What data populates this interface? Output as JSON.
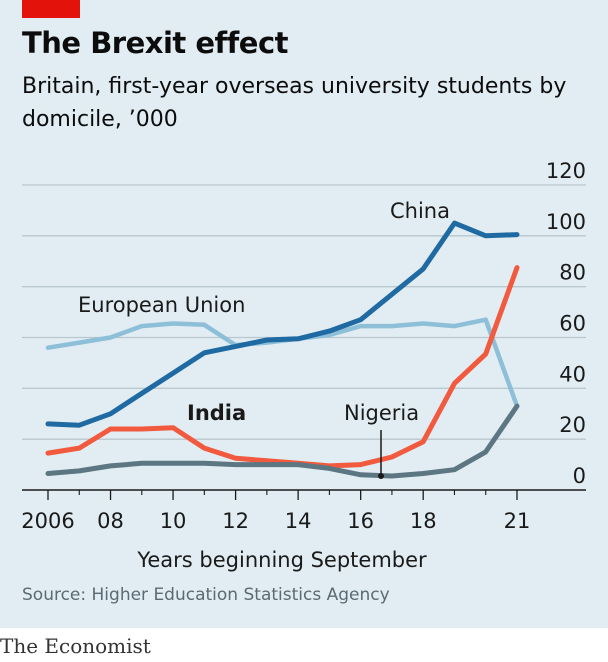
{
  "header": {
    "title": "The Brexit effect",
    "subtitle": "Britain, first-year overseas university students by domicile, ’000"
  },
  "footer": {
    "source": "Source: Higher Education Statistics Agency",
    "brand": "The Economist"
  },
  "colors": {
    "background": "#e1edf2",
    "brand_red": "#e3120b",
    "china": "#1f6aa2",
    "eu": "#8ebfd9",
    "india": "#f25a3f",
    "nigeria": "#5c7682",
    "grid": "#b9c7ce",
    "axis": "#1a1a1a"
  },
  "chart_data": {
    "type": "line",
    "xlabel": "Years beginning September",
    "ylabel": "",
    "xlim": [
      2005.6,
      2022
    ],
    "ylim": [
      0,
      120
    ],
    "y_ticks": [
      0,
      20,
      40,
      60,
      80,
      100,
      120
    ],
    "y_tick_labels": [
      "0",
      "20",
      "40",
      "60",
      "80",
      "100",
      "120"
    ],
    "x_ticks": [
      2006,
      2008,
      2010,
      2012,
      2014,
      2016,
      2018,
      2021
    ],
    "x_tick_labels": [
      "2006",
      "08",
      "10",
      "12",
      "14",
      "16",
      "18",
      "21"
    ],
    "x_minor_ticks": [
      2007,
      2009,
      2011,
      2013,
      2015,
      2017,
      2019,
      2020
    ],
    "y_axis_side": "right",
    "grid": true,
    "series": [
      {
        "name": "European Union",
        "color_key": "eu",
        "bold_label": false,
        "x": [
          2006,
          2007,
          2008,
          2009,
          2010,
          2011,
          2012,
          2013,
          2014,
          2015,
          2016,
          2017,
          2018,
          2019,
          2020,
          2021
        ],
        "y": [
          56,
          58,
          60,
          64.5,
          65.5,
          65,
          57,
          58,
          59.5,
          61,
          64.5,
          64.5,
          65.5,
          64.5,
          67,
          33
        ]
      },
      {
        "name": "China",
        "color_key": "china",
        "bold_label": false,
        "x": [
          2006,
          2007,
          2008,
          2009,
          2010,
          2011,
          2012,
          2013,
          2014,
          2015,
          2016,
          2017,
          2018,
          2019,
          2020,
          2021
        ],
        "y": [
          26,
          25.5,
          30,
          38,
          46,
          54,
          56.5,
          59,
          59.5,
          62.5,
          67,
          77,
          87,
          105,
          100,
          100.5
        ]
      },
      {
        "name": "India",
        "color_key": "india",
        "bold_label": true,
        "x": [
          2006,
          2007,
          2008,
          2009,
          2010,
          2011,
          2012,
          2013,
          2014,
          2015,
          2016,
          2017,
          2018,
          2019,
          2020,
          2021
        ],
        "y": [
          14.5,
          16.5,
          24,
          24,
          24.5,
          16.5,
          12.5,
          11.5,
          10.5,
          9.5,
          10,
          13,
          19,
          42,
          53.5,
          87.5
        ]
      },
      {
        "name": "Nigeria",
        "color_key": "nigeria",
        "bold_label": false,
        "x": [
          2006,
          2007,
          2008,
          2009,
          2010,
          2011,
          2012,
          2013,
          2014,
          2015,
          2016,
          2017,
          2018,
          2019,
          2020,
          2021
        ],
        "y": [
          6.5,
          7.5,
          9.5,
          10.5,
          10.5,
          10.5,
          10,
          10,
          10,
          8.5,
          6,
          5.5,
          6.5,
          8,
          15,
          33
        ]
      }
    ]
  }
}
